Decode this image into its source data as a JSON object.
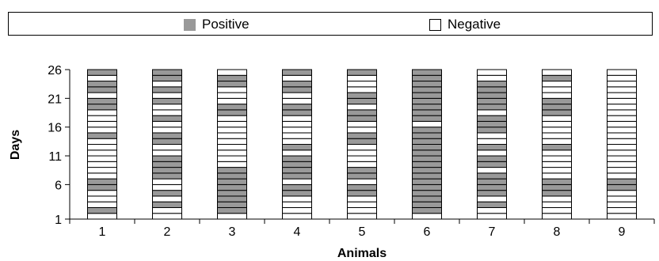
{
  "legend": [
    {
      "label": "Positive",
      "color": "#999999"
    },
    {
      "label": "Negative",
      "color": "#ffffff"
    }
  ],
  "chart_data": {
    "type": "bar",
    "subtype": "stacked-day-status",
    "xlabel": "Animals",
    "ylabel": "Days",
    "categories": [
      "1",
      "2",
      "3",
      "4",
      "5",
      "6",
      "7",
      "8",
      "9"
    ],
    "yticks": [
      1,
      6,
      11,
      16,
      21,
      26
    ],
    "ylim": [
      1,
      26
    ],
    "grid": false,
    "legend_position": "top",
    "series": [
      {
        "name": "Positive",
        "color": "#999999"
      },
      {
        "name": "Negative",
        "color": "#ffffff"
      }
    ],
    "positive_days": [
      [
        2,
        6,
        7,
        15,
        20,
        21,
        23,
        24,
        26
      ],
      [
        3,
        5,
        8,
        9,
        10,
        11,
        14,
        15,
        18,
        21,
        23,
        25,
        26
      ],
      [
        2,
        3,
        4,
        5,
        6,
        7,
        8,
        9,
        19,
        20,
        24,
        25
      ],
      [
        5,
        6,
        8,
        9,
        10,
        11,
        13,
        19,
        20,
        23,
        24,
        26
      ],
      [
        5,
        6,
        8,
        9,
        14,
        15,
        18,
        19,
        21,
        22,
        26
      ],
      [
        2,
        3,
        4,
        5,
        6,
        7,
        8,
        9,
        10,
        11,
        12,
        13,
        14,
        15,
        16,
        18,
        19,
        20,
        21,
        22,
        23,
        24,
        25,
        26
      ],
      [
        3,
        5,
        6,
        7,
        8,
        10,
        11,
        13,
        16,
        17,
        18,
        20,
        21,
        22,
        23,
        24
      ],
      [
        5,
        6,
        7,
        13,
        19,
        20,
        21,
        25
      ],
      [
        6,
        7
      ]
    ]
  }
}
